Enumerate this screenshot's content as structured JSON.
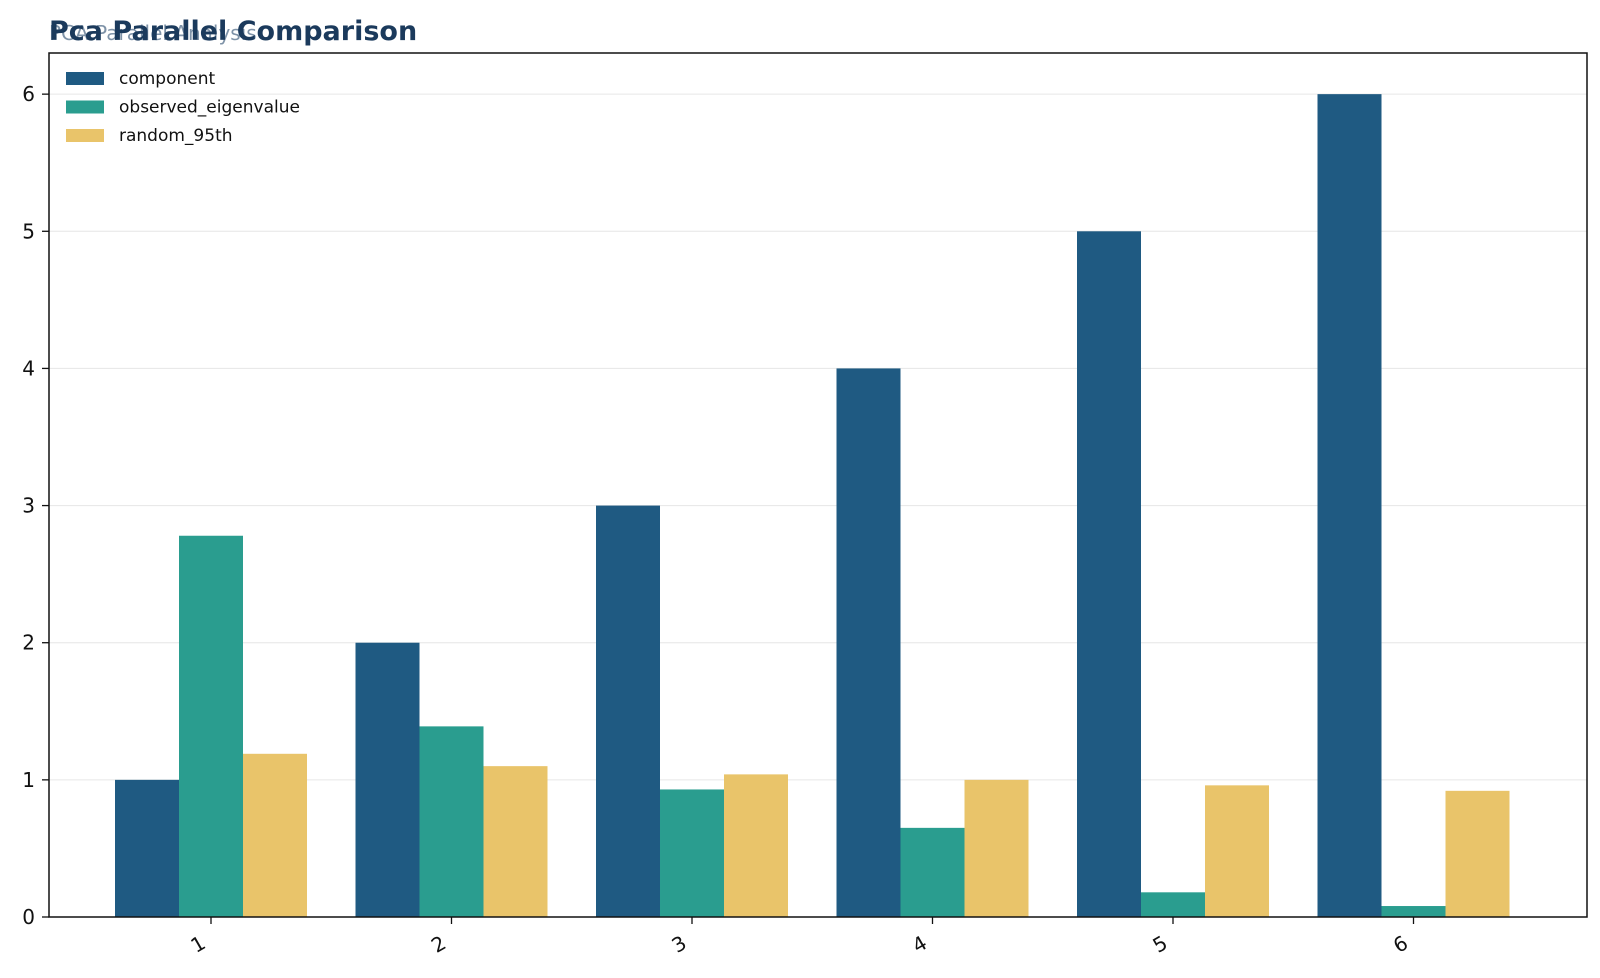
{
  "chart_data": {
    "type": "bar",
    "title": "Pca Parallel Comparison",
    "subtitle": "PCA Parallel Analysis",
    "xlabel": "",
    "ylabel": "",
    "categories": [
      "1",
      "2",
      "3",
      "4",
      "5",
      "6"
    ],
    "series": [
      {
        "name": "component",
        "values": [
          1,
          2,
          3,
          4,
          5,
          6
        ],
        "color": "#1f5a82"
      },
      {
        "name": "observed_eigenvalue",
        "values": [
          2.78,
          1.39,
          0.93,
          0.65,
          0.18,
          0.08
        ],
        "color": "#2a9d8f"
      },
      {
        "name": "random_95th",
        "values": [
          1.19,
          1.1,
          1.04,
          1.0,
          0.96,
          0.92
        ],
        "color": "#e9c46a"
      }
    ],
    "ylim": [
      0,
      6.3
    ],
    "yticks": [
      0,
      1,
      2,
      3,
      4,
      5,
      6
    ],
    "grid": "y",
    "legend": "top-left"
  }
}
